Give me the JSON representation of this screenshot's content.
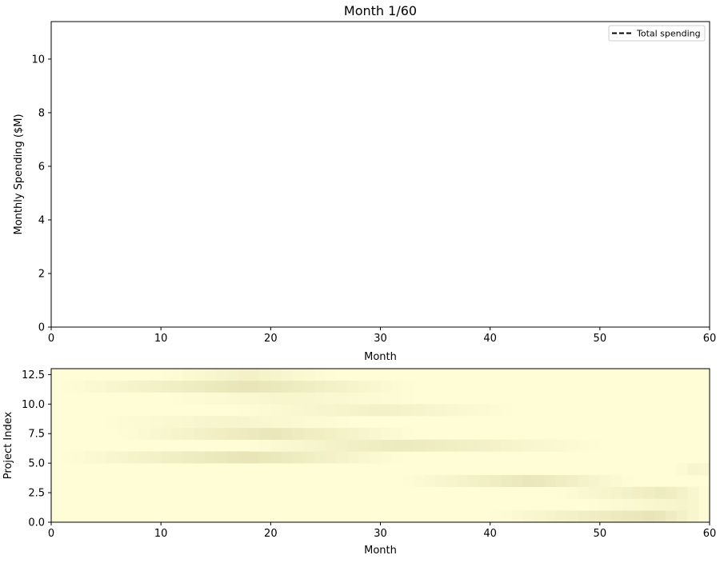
{
  "chart_data": [
    {
      "type": "line",
      "title": "Month 1/60",
      "xlabel": "Month",
      "ylabel": "Monthly Spending ($M)",
      "xlim": [
        0,
        60
      ],
      "ylim": [
        0,
        11.4
      ],
      "xticks": [
        0,
        10,
        20,
        30,
        40,
        50,
        60
      ],
      "yticks": [
        0,
        2,
        4,
        6,
        8,
        10
      ],
      "grid": false,
      "legend_position": "top-right",
      "series": [
        {
          "name": "Total spending",
          "style": "dashed",
          "color": "#000000",
          "x": [],
          "y": []
        }
      ]
    },
    {
      "type": "heatmap",
      "xlabel": "Month",
      "ylabel": "Project Index",
      "xlim": [
        0,
        60
      ],
      "ylim": [
        0,
        13
      ],
      "xticks": [
        0,
        10,
        20,
        30,
        40,
        50,
        60
      ],
      "yticks": [
        0.0,
        2.5,
        5.0,
        7.5,
        10.0,
        12.5
      ],
      "ytick_labels": [
        "0.0",
        "2.5",
        "5.0",
        "7.5",
        "10.0",
        "12.5"
      ],
      "colormap": "YlOrBr-light",
      "base_color": "#fefdd6",
      "peak_color": "#e8e4b8",
      "projects": [
        {
          "index": 0,
          "start": 40,
          "peak": 55,
          "end": 60,
          "intensity": 1.0
        },
        {
          "index": 1,
          "start": 48,
          "peak": 58,
          "end": 60,
          "intensity": 0.4
        },
        {
          "index": 2,
          "start": 46,
          "peak": 56,
          "end": 60,
          "intensity": 0.75
        },
        {
          "index": 3,
          "start": 32,
          "peak": 44,
          "end": 53,
          "intensity": 0.9
        },
        {
          "index": 4,
          "start": 57,
          "peak": 59,
          "end": 60,
          "intensity": 0.45
        },
        {
          "index": 5,
          "start": 1,
          "peak": 18,
          "end": 32,
          "intensity": 1.0
        },
        {
          "index": 6,
          "start": 18,
          "peak": 32,
          "end": 50,
          "intensity": 0.8
        },
        {
          "index": 7,
          "start": 6,
          "peak": 20,
          "end": 33,
          "intensity": 0.9
        },
        {
          "index": 8,
          "start": 4,
          "peak": 16,
          "end": 28,
          "intensity": 0.35
        },
        {
          "index": 9,
          "start": 16,
          "peak": 30,
          "end": 42,
          "intensity": 0.5
        },
        {
          "index": 10,
          "start": 10,
          "peak": 22,
          "end": 34,
          "intensity": 0.3
        },
        {
          "index": 11,
          "start": 1,
          "peak": 18,
          "end": 33,
          "intensity": 1.0
        },
        {
          "index": 12,
          "start": 10,
          "peak": 18,
          "end": 26,
          "intensity": 0.5
        }
      ]
    }
  ]
}
